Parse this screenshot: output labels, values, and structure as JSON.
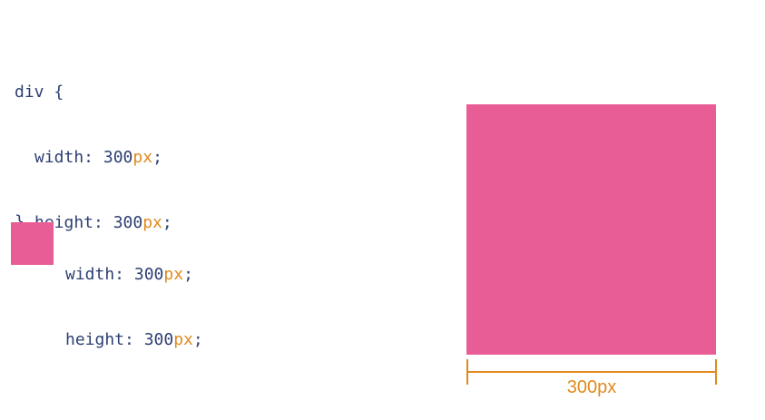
{
  "css_rule": {
    "selector": "div",
    "open_brace": "{",
    "close_brace": "}",
    "width_prop": "width: ",
    "width_num": "300",
    "width_unit": "px",
    "height_prop": "height: ",
    "height_num": "300",
    "height_unit": "px",
    "terminator": ";"
  },
  "legend": {
    "width_prop": "width: ",
    "width_num": "300",
    "width_unit": "px",
    "height_prop": "height: ",
    "height_num": "300",
    "height_unit": "px",
    "terminator": ";"
  },
  "dimension": {
    "label": "300px"
  },
  "colors": {
    "box": "#e95d96",
    "accent": "#e08a1e",
    "code_text": "#2d3f73"
  }
}
